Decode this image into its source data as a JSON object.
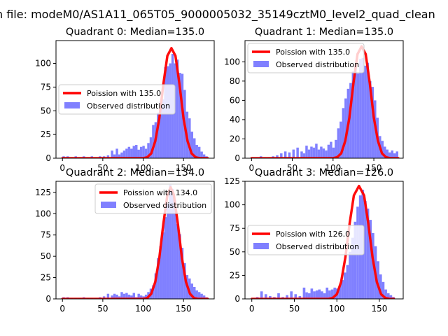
{
  "figure": {
    "suptitle": "n file: modeM0/AS1A11_065T05_9000005032_35149cztM0_level2_quad_clean"
  },
  "colors": {
    "poisson_line": "#ff0000",
    "histogram": "#8080ff",
    "axes": "#000000",
    "background": "#ffffff"
  },
  "chart_data": [
    {
      "type": "bar+line",
      "title": "Quadrant 0: Median=135.0",
      "median": 135.0,
      "xlim": [
        -8,
        188
      ],
      "ylim": [
        0,
        124
      ],
      "xticks": [
        0,
        50,
        100,
        150
      ],
      "yticks": [
        0,
        25,
        50,
        75,
        100
      ],
      "legend": {
        "location": "center-left",
        "line_label": "Poission with 135.0",
        "hist_label": "Observed distribution"
      },
      "poisson": {
        "mean": 135.0,
        "peak": 116,
        "x": [
          0,
          100,
          105,
          110,
          115,
          120,
          125,
          130,
          135,
          140,
          145,
          150,
          155,
          160,
          165,
          170,
          175,
          180
        ],
        "y": [
          0,
          0,
          1,
          5,
          18,
          42,
          78,
          108,
          116,
          108,
          78,
          42,
          18,
          5,
          1,
          0,
          0,
          0
        ]
      },
      "histogram": {
        "x": [
          0,
          5,
          10,
          15,
          20,
          25,
          30,
          35,
          40,
          45,
          50,
          55,
          60,
          63,
          66,
          69,
          72,
          75,
          78,
          81,
          84,
          87,
          90,
          93,
          96,
          99,
          102,
          105,
          108,
          111,
          114,
          117,
          120,
          123,
          126,
          129,
          132,
          135,
          138,
          141,
          144,
          147,
          150,
          153,
          156,
          159,
          162,
          165,
          168,
          171,
          174,
          177
        ],
        "width": 3,
        "values": [
          2,
          2,
          1,
          2,
          1,
          2,
          1,
          2,
          1,
          2,
          2,
          3,
          8,
          4,
          10,
          4,
          6,
          8,
          10,
          12,
          10,
          13,
          14,
          9,
          12,
          13,
          10,
          16,
          22,
          35,
          38,
          48,
          60,
          62,
          96,
          97,
          100,
          110,
          100,
          104,
          90,
          89,
          72,
          49,
          42,
          28,
          21,
          14,
          12,
          7,
          4,
          2
        ]
      }
    },
    {
      "type": "bar+line",
      "title": "Quadrant 1: Median=135.0",
      "median": 135.0,
      "xlim": [
        -8,
        186
      ],
      "ylim": [
        0,
        122
      ],
      "xticks": [
        0,
        50,
        100,
        150
      ],
      "yticks": [
        0,
        20,
        40,
        60,
        80,
        100
      ],
      "legend": {
        "location": "top-left",
        "line_label": "Poission with 135.0",
        "hist_label": "Observed distribution"
      },
      "poisson": {
        "mean": 135.0,
        "peak": 116,
        "x": [
          0,
          100,
          105,
          110,
          115,
          120,
          125,
          130,
          135,
          140,
          145,
          150,
          155,
          160,
          165,
          170,
          175,
          180
        ],
        "y": [
          0,
          0,
          1,
          5,
          18,
          42,
          78,
          108,
          116,
          108,
          78,
          42,
          18,
          5,
          1,
          0,
          0,
          0
        ]
      },
      "histogram": {
        "x": [
          0,
          5,
          10,
          15,
          20,
          25,
          30,
          35,
          40,
          45,
          50,
          55,
          60,
          63,
          66,
          69,
          72,
          75,
          78,
          81,
          84,
          87,
          90,
          93,
          96,
          99,
          102,
          105,
          108,
          111,
          114,
          117,
          120,
          123,
          126,
          129,
          132,
          135,
          138,
          141,
          144,
          147,
          150,
          153,
          156,
          159,
          162,
          165,
          168,
          171,
          174,
          177
        ],
        "width": 3,
        "values": [
          1,
          1,
          2,
          1,
          1,
          2,
          3,
          5,
          7,
          6,
          9,
          11,
          7,
          5,
          13,
          9,
          12,
          11,
          15,
          9,
          12,
          10,
          8,
          14,
          17,
          11,
          19,
          31,
          38,
          52,
          62,
          72,
          78,
          90,
          96,
          88,
          103,
          104,
          96,
          99,
          80,
          74,
          60,
          42,
          23,
          18,
          12,
          9,
          6,
          8,
          5,
          7
        ]
      }
    },
    {
      "type": "bar+line",
      "title": "Quadrant 2: Median=134.0",
      "median": 134.0,
      "xlim": [
        -8,
        188
      ],
      "ylim": [
        0,
        138
      ],
      "xticks": [
        0,
        50,
        100,
        150
      ],
      "yticks": [
        0,
        25,
        50,
        75,
        100,
        125
      ],
      "legend": {
        "location": "top-right",
        "line_label": "Poission with 134.0",
        "hist_label": "Observed distribution"
      },
      "poisson": {
        "mean": 134.0,
        "peak": 131,
        "x": [
          0,
          100,
          105,
          110,
          115,
          120,
          125,
          130,
          134,
          138,
          143,
          148,
          153,
          158,
          163,
          168,
          173,
          180
        ],
        "y": [
          0,
          0,
          1,
          6,
          20,
          48,
          88,
          122,
          131,
          122,
          88,
          48,
          20,
          6,
          1,
          0,
          0,
          0
        ]
      },
      "histogram": {
        "x": [
          0,
          5,
          10,
          15,
          20,
          25,
          30,
          35,
          40,
          45,
          50,
          55,
          60,
          63,
          66,
          69,
          72,
          75,
          78,
          81,
          84,
          87,
          90,
          93,
          96,
          99,
          102,
          105,
          108,
          111,
          114,
          117,
          120,
          123,
          126,
          129,
          132,
          135,
          138,
          141,
          144,
          147,
          150,
          153,
          156,
          159,
          162,
          165,
          168,
          171,
          174,
          177
        ],
        "width": 3,
        "values": [
          2,
          2,
          1,
          1,
          1,
          2,
          1,
          1,
          1,
          2,
          3,
          6,
          4,
          6,
          5,
          3,
          8,
          6,
          7,
          5,
          4,
          7,
          2,
          6,
          4,
          3,
          5,
          8,
          12,
          16,
          30,
          48,
          62,
          78,
          96,
          112,
          134,
          129,
          116,
          88,
          76,
          60,
          42,
          28,
          24,
          18,
          14,
          10,
          8,
          6,
          4,
          2
        ]
      }
    },
    {
      "type": "bar+line",
      "title": "Quadrant 3: Median=126.0",
      "median": 126.0,
      "xlim": [
        -8,
        178
      ],
      "ylim": [
        0,
        125
      ],
      "xticks": [
        0,
        50,
        100,
        150
      ],
      "yticks": [
        0,
        25,
        50,
        75,
        100,
        125
      ],
      "legend": {
        "location": "center-left",
        "line_label": "Poission with 126.0",
        "hist_label": "Observed distribution"
      },
      "poisson": {
        "mean": 126.0,
        "peak": 120,
        "x": [
          0,
          90,
          95,
          100,
          105,
          110,
          115,
          120,
          126,
          132,
          137,
          142,
          147,
          152,
          157,
          162,
          167
        ],
        "y": [
          0,
          0,
          1,
          5,
          18,
          44,
          80,
          110,
          120,
          110,
          80,
          44,
          18,
          5,
          1,
          0,
          0
        ]
      },
      "histogram": {
        "x": [
          0,
          5,
          10,
          15,
          20,
          25,
          30,
          35,
          40,
          45,
          50,
          55,
          60,
          63,
          66,
          69,
          72,
          75,
          78,
          81,
          84,
          87,
          90,
          93,
          96,
          99,
          102,
          105,
          108,
          111,
          114,
          117,
          120,
          123,
          126,
          129,
          132,
          135,
          138,
          141,
          144,
          147,
          150,
          153,
          156,
          159,
          162,
          165
        ],
        "width": 3,
        "values": [
          1,
          2,
          8,
          5,
          3,
          2,
          6,
          2,
          4,
          8,
          5,
          3,
          12,
          7,
          6,
          11,
          8,
          9,
          10,
          8,
          6,
          12,
          9,
          10,
          12,
          11,
          14,
          20,
          28,
          36,
          50,
          65,
          82,
          98,
          110,
          116,
          104,
          96,
          84,
          70,
          56,
          40,
          26,
          18,
          10,
          6,
          4,
          2
        ]
      }
    }
  ]
}
